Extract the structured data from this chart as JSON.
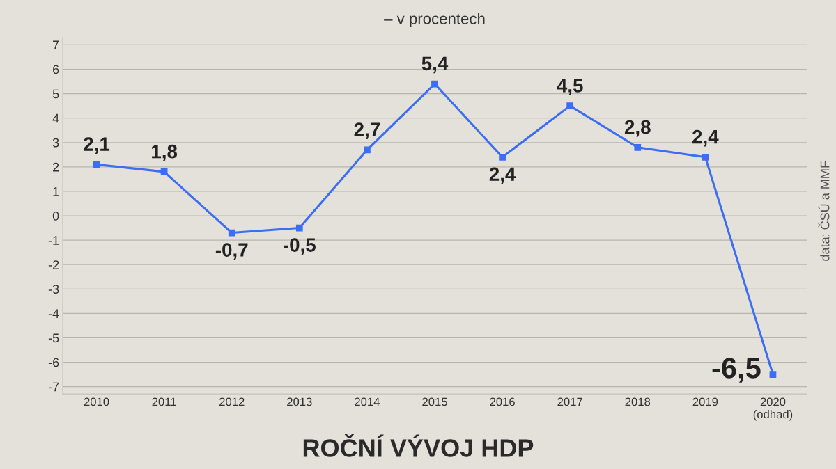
{
  "chart_data": {
    "type": "line",
    "title": "ROČNÍ VÝVOJ HDP",
    "subtitle": "– v procentech",
    "categories": [
      "2010",
      "2011",
      "2012",
      "2013",
      "2014",
      "2015",
      "2016",
      "2017",
      "2018",
      "2019",
      "2020\n(odhad)"
    ],
    "series": [
      {
        "color": "#3b6ef2",
        "values": [
          2.1,
          1.8,
          -0.7,
          -0.5,
          2.7,
          5.4,
          2.4,
          4.5,
          2.8,
          2.4,
          -6.5
        ],
        "value_labels": [
          "2,1",
          "1,8",
          "-0,7",
          "-0,5",
          "2,7",
          "5,4",
          "2,4",
          "4,5",
          "2,8",
          "2,4",
          "-6,5"
        ]
      }
    ],
    "ylim": [
      -7.3,
      7.3
    ],
    "yticks": [
      -7,
      -6,
      -5,
      -4,
      -3,
      -2,
      -1,
      0,
      1,
      2,
      3,
      4,
      5,
      6,
      7
    ],
    "grid": "y",
    "marker": "square",
    "line_style": "solid",
    "annotations": [
      "data: ČSÚ a MMF"
    ]
  }
}
